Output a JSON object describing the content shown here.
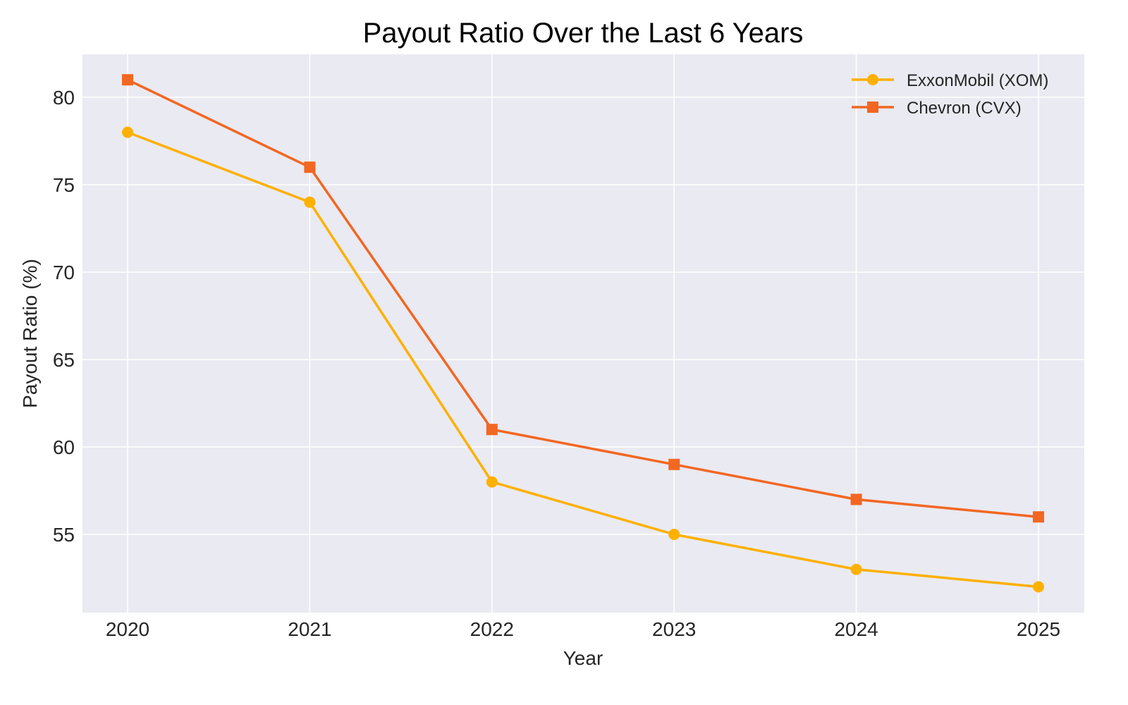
{
  "chart_data": {
    "type": "line",
    "title": "Payout Ratio Over the Last 6 Years",
    "xlabel": "Year",
    "ylabel": "Payout Ratio (%)",
    "categories": [
      "2020",
      "2021",
      "2022",
      "2023",
      "2024",
      "2025"
    ],
    "series": [
      {
        "name": "ExxonMobil (XOM)",
        "values": [
          78,
          74,
          58,
          55,
          53,
          52
        ],
        "color": "#FFB000",
        "marker": "circle"
      },
      {
        "name": "Chevron (CVX)",
        "values": [
          81,
          76,
          61,
          59,
          57,
          56
        ],
        "color": "#F26722",
        "marker": "square"
      }
    ],
    "yticks": [
      55,
      60,
      65,
      70,
      75,
      80
    ],
    "ylim": [
      50.55,
      82.45
    ],
    "grid": true,
    "legend_position": "upper right",
    "background": "#EAEAF2"
  }
}
